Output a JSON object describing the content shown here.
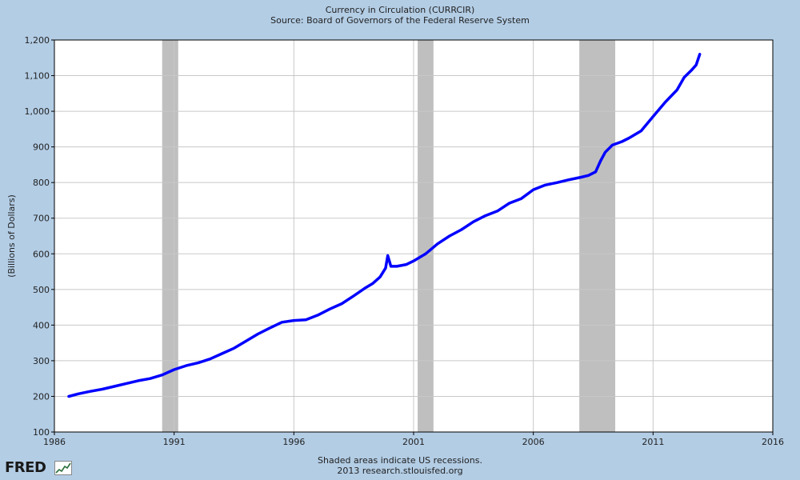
{
  "header": {
    "title": "Currency in Circulation (CURRCIR)",
    "subtitle": "Source: Board of Governors of the Federal Reserve System"
  },
  "footer": {
    "note1": "Shaded areas indicate US recessions.",
    "note2": "2013 research.stlouisfed.org",
    "logo_text": "FRED"
  },
  "colors": {
    "background": "#b3cde5",
    "plot_background": "#ffffff",
    "line": "#0000ff",
    "recession": "#bfbfbf",
    "grid": "#c8c8c8"
  },
  "chart_data": {
    "type": "line",
    "title": "Currency in Circulation (CURRCIR)",
    "subtitle": "Source: Board of Governors of the Federal Reserve System",
    "xlabel": "",
    "ylabel": "(Billions of Dollars)",
    "xlim": [
      1986,
      2016
    ],
    "ylim": [
      100,
      1200
    ],
    "x_ticks": [
      1986,
      1991,
      1996,
      2001,
      2006,
      2011,
      2016
    ],
    "x_tick_labels": [
      "1986",
      "1991",
      "1996",
      "2001",
      "2006",
      "2011",
      "2016"
    ],
    "y_ticks": [
      100,
      200,
      300,
      400,
      500,
      600,
      700,
      800,
      900,
      1000,
      1100,
      1200
    ],
    "y_tick_labels": [
      "100",
      "200",
      "300",
      "400",
      "500",
      "600",
      "700",
      "800",
      "900",
      "1,000",
      "1,100",
      "1,200"
    ],
    "grid": true,
    "recessions": [
      {
        "start": 1990.5,
        "end": 1991.17
      },
      {
        "start": 2001.17,
        "end": 2001.83
      },
      {
        "start": 2007.92,
        "end": 2009.42
      }
    ],
    "series": [
      {
        "name": "CURRCIR",
        "x": [
          1986.6,
          1987.0,
          1987.5,
          1988.0,
          1988.5,
          1989.0,
          1989.5,
          1990.0,
          1990.5,
          1991.0,
          1991.5,
          1992.0,
          1992.5,
          1993.0,
          1993.5,
          1994.0,
          1994.5,
          1995.0,
          1995.5,
          1996.0,
          1996.5,
          1997.0,
          1997.5,
          1998.0,
          1998.5,
          1999.0,
          1999.3,
          1999.6,
          1999.83,
          1999.92,
          2000.05,
          2000.3,
          2000.7,
          2001.0,
          2001.5,
          2002.0,
          2002.5,
          2003.0,
          2003.5,
          2004.0,
          2004.5,
          2005.0,
          2005.5,
          2006.0,
          2006.5,
          2007.0,
          2007.5,
          2008.0,
          2008.3,
          2008.6,
          2008.8,
          2009.0,
          2009.3,
          2009.7,
          2010.0,
          2010.5,
          2011.0,
          2011.5,
          2012.0,
          2012.3,
          2012.6,
          2012.8,
          2012.95
        ],
        "y": [
          200,
          207,
          214,
          220,
          228,
          236,
          244,
          250,
          260,
          275,
          286,
          294,
          305,
          320,
          335,
          355,
          375,
          392,
          408,
          413,
          415,
          428,
          445,
          460,
          482,
          505,
          517,
          535,
          560,
          595,
          565,
          565,
          570,
          580,
          600,
          628,
          650,
          668,
          690,
          707,
          720,
          742,
          755,
          780,
          793,
          800,
          808,
          815,
          820,
          830,
          860,
          885,
          905,
          915,
          925,
          945,
          985,
          1025,
          1060,
          1095,
          1115,
          1130,
          1160
        ]
      }
    ]
  }
}
